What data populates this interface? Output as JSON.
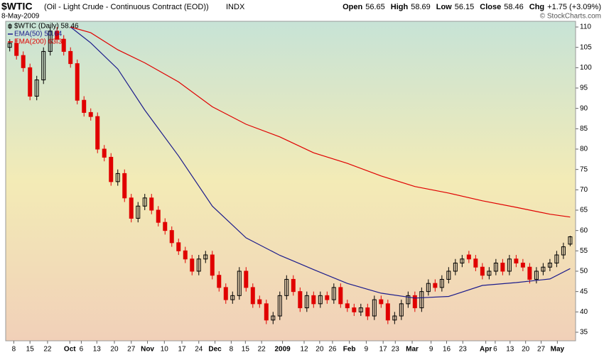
{
  "chart_data": {
    "type": "candlestick",
    "symbol": "$WTIC",
    "title": "(Oil - Light Crude - Continuous Contract (EOD))",
    "exchange": "INDX",
    "date": "8-May-2009",
    "credit": "© StockCharts.com",
    "quote": [
      {
        "label": "Open",
        "value": 56.65
      },
      {
        "label": "High",
        "value": 58.69
      },
      {
        "label": "Low",
        "value": 56.15
      },
      {
        "label": "Close",
        "value": 58.46
      },
      {
        "label": "Chg",
        "value": "+1.75 (+3.09%)"
      }
    ],
    "ylim": [
      32.9,
      111.4
    ],
    "yticks": [
      35,
      40,
      45,
      50,
      55,
      60,
      65,
      70,
      75,
      80,
      85,
      90,
      95,
      100,
      105,
      110
    ],
    "xlim": [
      -0.6,
      83.8
    ],
    "xticks": [
      {
        "value": 0.6,
        "label": "8"
      },
      {
        "value": 3.0,
        "label": "15"
      },
      {
        "value": 5.6,
        "label": "22"
      },
      {
        "value": 8.9,
        "label": "Oct"
      },
      {
        "value": 10.6,
        "label": "6"
      },
      {
        "value": 12.9,
        "label": "13"
      },
      {
        "value": 15.5,
        "label": "20"
      },
      {
        "value": 18.0,
        "label": "27"
      },
      {
        "value": 20.4,
        "label": "Nov"
      },
      {
        "value": 22.9,
        "label": "10"
      },
      {
        "value": 25.5,
        "label": "17"
      },
      {
        "value": 28.0,
        "label": "24"
      },
      {
        "value": 30.4,
        "label": "Dec"
      },
      {
        "value": 32.8,
        "label": "8"
      },
      {
        "value": 34.9,
        "label": "15"
      },
      {
        "value": 37.3,
        "label": "22"
      },
      {
        "value": 40.4,
        "label": "2009"
      },
      {
        "value": 43.6,
        "label": "12"
      },
      {
        "value": 45.9,
        "label": "20"
      },
      {
        "value": 47.8,
        "label": "26"
      },
      {
        "value": 50.3,
        "label": "Feb"
      },
      {
        "value": 52.8,
        "label": "9"
      },
      {
        "value": 55.3,
        "label": "17"
      },
      {
        "value": 57.1,
        "label": "23"
      },
      {
        "value": 59.6,
        "label": "Mar"
      },
      {
        "value": 62.4,
        "label": "9"
      },
      {
        "value": 64.7,
        "label": "16"
      },
      {
        "value": 67.1,
        "label": "23"
      },
      {
        "value": 70.5,
        "label": "Apr"
      },
      {
        "value": 71.9,
        "label": "6"
      },
      {
        "value": 74.1,
        "label": "13"
      },
      {
        "value": 76.4,
        "label": "20"
      },
      {
        "value": 78.7,
        "label": "27"
      },
      {
        "value": 81.1,
        "label": "May"
      }
    ],
    "grid": false,
    "up_color": "#000000",
    "down_color": "#e00000",
    "series": [
      {
        "name": "$WTIC (Daily) 58.46",
        "color": "#000000",
        "open": [
          105,
          106,
          103,
          100,
          93,
          97,
          104,
          109,
          107,
          104,
          101,
          92,
          89,
          88,
          80,
          78,
          72,
          74,
          68,
          63,
          66,
          68,
          65,
          62,
          60,
          57,
          55,
          53,
          50,
          53,
          54,
          49,
          46,
          43,
          44,
          50,
          46,
          43,
          42,
          38,
          39,
          44,
          48,
          45,
          41,
          44,
          42,
          44,
          43,
          46,
          42,
          41,
          40,
          41,
          39,
          43,
          42,
          38,
          39,
          42,
          44,
          41,
          45,
          47,
          46,
          48,
          50,
          52,
          54,
          53,
          51,
          49,
          50,
          52,
          50,
          53,
          52,
          51,
          48,
          50,
          51,
          52,
          54,
          56.65
        ],
        "high": [
          107,
          107,
          104,
          101,
          98,
          105,
          110,
          110,
          108,
          105,
          102,
          93,
          90,
          89,
          81,
          79,
          75,
          75,
          69,
          67,
          69,
          69,
          66,
          63,
          61,
          58,
          56,
          54,
          54,
          55,
          55,
          50,
          47,
          45,
          51,
          51,
          47,
          44,
          43,
          40,
          45,
          49,
          49,
          46,
          45,
          45,
          45,
          45,
          47,
          47,
          43,
          42,
          42,
          42,
          44,
          44,
          43,
          40,
          43,
          45,
          45,
          46,
          48,
          48,
          49,
          51,
          53,
          54,
          55,
          54,
          52,
          51,
          53,
          53,
          54,
          54,
          53,
          52,
          51,
          52,
          53,
          55,
          57,
          58.69
        ],
        "low": [
          104,
          102,
          99,
          92,
          92,
          96,
          103,
          106,
          103,
          100,
          91,
          88,
          87,
          79,
          77,
          71,
          71,
          67,
          62,
          62,
          65,
          64,
          61,
          59,
          56,
          54,
          52,
          49,
          49,
          52,
          48,
          45,
          42,
          42,
          43,
          45,
          41,
          41,
          37,
          37,
          38,
          43,
          44,
          40,
          40,
          41,
          41,
          42,
          42,
          41,
          40,
          39,
          39,
          38,
          38,
          41,
          37,
          37,
          38,
          41,
          40,
          40,
          44,
          45,
          45,
          47,
          49,
          51,
          52,
          50,
          48,
          48,
          49,
          49,
          49,
          51,
          50,
          47,
          47,
          49,
          50,
          51,
          53,
          56.15
        ],
        "close": [
          106,
          103,
          100,
          93,
          97,
          104,
          109,
          107,
          104,
          101,
          92,
          89,
          88,
          80,
          78,
          72,
          74,
          68,
          63,
          66,
          68,
          65,
          62,
          60,
          57,
          55,
          53,
          50,
          53,
          54,
          49,
          46,
          43,
          44,
          50,
          46,
          42,
          42,
          38,
          39,
          44,
          48,
          45,
          41,
          44,
          42,
          44,
          43,
          46,
          42,
          41,
          40,
          41,
          39,
          43,
          42,
          38,
          39,
          42,
          44,
          41,
          45,
          47,
          46,
          48,
          50,
          52,
          53,
          53,
          51,
          49,
          50,
          52,
          50,
          53,
          52,
          51,
          48,
          50,
          51,
          52,
          54,
          56,
          58.46
        ]
      },
      {
        "name": "EMA(50) 50.64",
        "color": "#1c1c8c",
        "x": [
          9,
          12,
          16,
          20,
          25,
          30,
          35,
          40,
          42,
          45,
          50,
          55,
          60,
          65,
          70,
          75,
          80,
          83
        ],
        "values": [
          110,
          106.1,
          99.7,
          89.6,
          78.3,
          66,
          58.2,
          53.9,
          52.5,
          50.4,
          47,
          44.6,
          43.4,
          43.8,
          46.5,
          47.2,
          48.1,
          50.64
        ]
      },
      {
        "name": "EMA(200) 63.31",
        "color": "#e00000",
        "x": [
          9,
          12,
          16,
          20,
          25,
          30,
          35,
          40,
          45,
          50,
          55,
          60,
          65,
          70,
          75,
          80,
          83
        ],
        "values": [
          110,
          108.6,
          104.4,
          101.2,
          96.5,
          90.4,
          86.1,
          83,
          79.1,
          76.5,
          73.4,
          70.8,
          69.2,
          67.3,
          65.7,
          64,
          63.31
        ]
      }
    ]
  }
}
